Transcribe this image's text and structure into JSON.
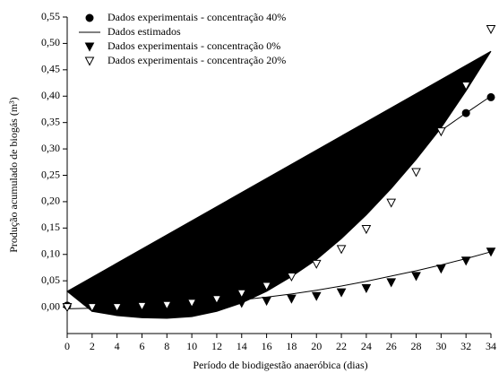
{
  "chart_data": {
    "type": "scatter",
    "x_label": "Período de biodigestão anaeróbica (dias)",
    "y_label": "Produção acumulado de biogás (m³)",
    "xlim": [
      0,
      34
    ],
    "xticks": [
      0,
      2,
      4,
      6,
      8,
      10,
      12,
      14,
      16,
      18,
      20,
      22,
      24,
      26,
      28,
      30,
      32,
      34
    ],
    "ylim": [
      -0.05,
      0.55
    ],
    "yticks": [
      {
        "value": 0,
        "label": "0,00"
      },
      {
        "value": 0.05,
        "label": "0,05"
      },
      {
        "value": 0.1,
        "label": "0,10"
      },
      {
        "value": 0.15,
        "label": "0,15"
      },
      {
        "value": 0.2,
        "label": "0,20"
      },
      {
        "value": 0.25,
        "label": "0,25"
      },
      {
        "value": 0.3,
        "label": "0,30"
      },
      {
        "value": 0.35,
        "label": "0,35"
      },
      {
        "value": 0.4,
        "label": "0,40"
      },
      {
        "value": 0.45,
        "label": "0,45"
      },
      {
        "value": 0.5,
        "label": "0,50"
      },
      {
        "value": 0.55,
        "label": "0,55"
      }
    ],
    "fit_legend": "Dados estimados",
    "fit_color": "#000000",
    "series": [
      {
        "name": "Dados experimentais - concentração 40%",
        "marker": "circle",
        "color": "#000000",
        "fill": "#000000",
        "x": [
          0,
          32,
          34
        ],
        "values": [
          0.003,
          0.368,
          0.398
        ],
        "fit_x": [
          30,
          32,
          34
        ],
        "fit": [
          0.335,
          0.368,
          0.4
        ],
        "fit_fill": false
      },
      {
        "name": "Dados experimentais - concentração 0%",
        "marker": "triangle-down",
        "color": "#000000",
        "fill": "#000000",
        "x": [
          0,
          2,
          4,
          6,
          8,
          10,
          12,
          14,
          16,
          18,
          20,
          22,
          24,
          26,
          28,
          30,
          32,
          34
        ],
        "values": [
          0.0,
          0.0,
          0.0,
          0.001,
          0.002,
          0.003,
          0.005,
          0.008,
          0.012,
          0.016,
          0.021,
          0.028,
          0.036,
          0.047,
          0.059,
          0.073,
          0.088,
          0.105
        ],
        "fit_x": [
          0,
          2,
          4,
          6,
          8,
          10,
          12,
          14,
          16,
          18,
          20,
          22,
          24,
          26,
          28,
          30,
          32,
          34
        ],
        "fit": [
          -0.003,
          -0.002,
          0.0,
          0.002,
          0.004,
          0.007,
          0.01,
          0.014,
          0.019,
          0.025,
          0.032,
          0.04,
          0.049,
          0.059,
          0.069,
          0.08,
          0.092,
          0.105
        ],
        "fit_fill": false
      },
      {
        "name": "Dados experimentais - concentração 20%",
        "marker": "triangle-down",
        "color": "#000000",
        "fill": "#ffffff",
        "x": [
          0,
          2,
          4,
          6,
          8,
          10,
          12,
          14,
          16,
          18,
          20,
          22,
          24,
          26,
          28,
          30,
          32,
          34
        ],
        "values": [
          0.0,
          0.0,
          0.0,
          0.002,
          0.004,
          0.008,
          0.015,
          0.026,
          0.04,
          0.058,
          0.082,
          0.11,
          0.148,
          0.198,
          0.256,
          0.333,
          0.42,
          0.527
        ],
        "fit_x": [
          0,
          2,
          4,
          6,
          8,
          10,
          12,
          14,
          16,
          18,
          20,
          22,
          24,
          26,
          28,
          30,
          32,
          34
        ],
        "fit": [
          0.03,
          -0.008,
          -0.016,
          -0.02,
          -0.021,
          -0.018,
          -0.008,
          0.008,
          0.03,
          0.058,
          0.09,
          0.13,
          0.175,
          0.225,
          0.28,
          0.34,
          0.41,
          0.485
        ],
        "fit_fill": true
      }
    ]
  }
}
